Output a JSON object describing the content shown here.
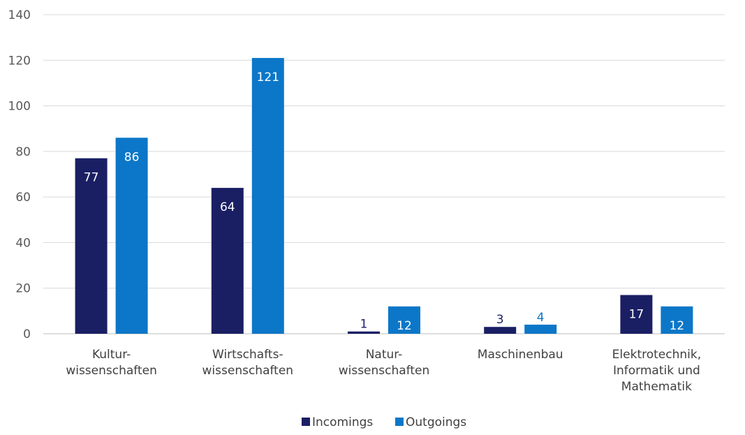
{
  "chart_data": {
    "type": "bar",
    "title": "",
    "xlabel": "",
    "ylabel": "",
    "categories": [
      [
        "Kultur-",
        "wissenschaften"
      ],
      [
        "Wirtschafts-",
        "wissenschaften"
      ],
      [
        "Natur-",
        "wissenschaften"
      ],
      [
        "Maschinenbau"
      ],
      [
        "Elektrotechnik,",
        "Informatik und",
        "Mathematik"
      ]
    ],
    "series": [
      {
        "name": "Incomings",
        "color": "#1a1f64",
        "values": [
          77,
          64,
          1,
          3,
          17
        ]
      },
      {
        "name": "Outgoings",
        "color": "#0c77c8",
        "values": [
          86,
          121,
          12,
          4,
          12
        ]
      }
    ],
    "ylim": [
      0,
      140
    ],
    "yticks": [
      0,
      20,
      40,
      60,
      80,
      100,
      120,
      140
    ],
    "grid": true,
    "legend_position": "bottom",
    "data_labels": true
  }
}
